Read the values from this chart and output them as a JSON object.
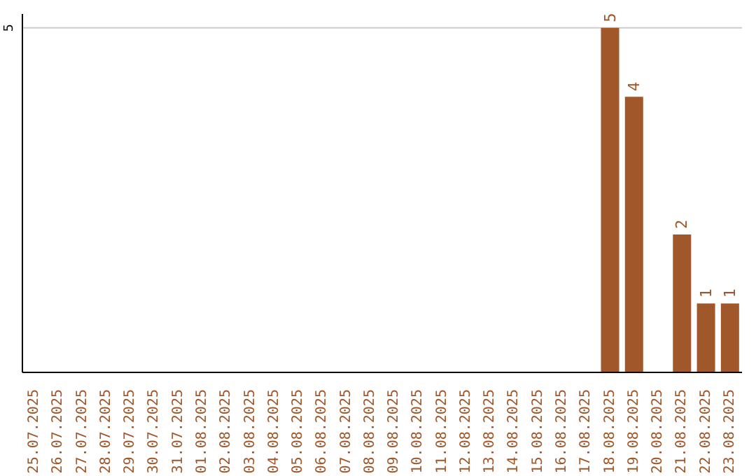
{
  "chart_data": {
    "type": "bar",
    "categories": [
      "25.07.2025",
      "26.07.2025",
      "27.07.2025",
      "28.07.2025",
      "29.07.2025",
      "30.07.2025",
      "31.07.2025",
      "01.08.2025",
      "02.08.2025",
      "03.08.2025",
      "04.08.2025",
      "05.08.2025",
      "06.08.2025",
      "07.08.2025",
      "08.08.2025",
      "09.08.2025",
      "10.08.2025",
      "11.08.2025",
      "12.08.2025",
      "13.08.2025",
      "14.08.2025",
      "15.08.2025",
      "16.08.2025",
      "17.08.2025",
      "18.08.2025",
      "19.08.2025",
      "20.08.2025",
      "21.08.2025",
      "22.08.2025",
      "23.08.2025"
    ],
    "values": [
      null,
      null,
      null,
      null,
      null,
      null,
      null,
      null,
      null,
      null,
      null,
      null,
      null,
      null,
      null,
      null,
      null,
      null,
      null,
      null,
      null,
      null,
      null,
      null,
      5,
      4,
      null,
      2,
      1,
      1
    ],
    "color": "#a0572a",
    "ylim": [
      0,
      5.2
    ],
    "yticks": [
      5
    ],
    "grid": "y",
    "data_labels": true
  }
}
